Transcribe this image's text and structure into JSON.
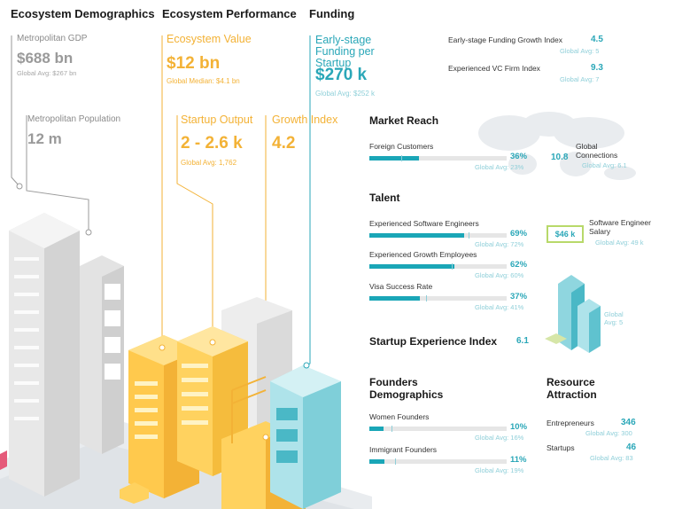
{
  "headers": {
    "demographics": "Ecosystem Demographics",
    "performance": "Ecosystem Performance",
    "funding": "Funding"
  },
  "demographics": {
    "gdp_label": "Metropolitan GDP",
    "gdp_value": "$688 bn",
    "gdp_global": "Global Avg: $267 bn",
    "pop_label": "Metropolitan Population",
    "pop_value": "12 m"
  },
  "performance": {
    "value_label": "Ecosystem Value",
    "value_value": "$12 bn",
    "value_global": "Global Median: $4.1 bn",
    "output_label": "Startup Output",
    "output_value": "2 - 2.6 k",
    "output_global": "Global Avg: 1,762",
    "growth_label": "Growth Index",
    "growth_value": "4.2"
  },
  "funding": {
    "label": "Early-stage Funding per Startup",
    "value": "$270 k",
    "global": "Global Avg: $252 k",
    "growth_label": "Early-stage Funding Growth Index",
    "growth_value": "4.5",
    "growth_global": "Global Avg: 5",
    "vc_label": "Experienced VC Firm Index",
    "vc_value": "9.3",
    "vc_global": "Global Avg: 7"
  },
  "market_reach": {
    "title": "Market Reach",
    "foreign_label": "Foreign Customers",
    "foreign_pct": "36%",
    "foreign_fill": 36,
    "foreign_avg_pos": 23,
    "foreign_global": "Global Avg: 23%",
    "connections_value": "10.8",
    "connections_label": "Global Connections",
    "connections_global": "Global Avg: 6.1"
  },
  "talent": {
    "title": "Talent",
    "items": [
      {
        "label": "Experienced Software Engineers",
        "pct": "69%",
        "fill": 69,
        "avg": 72,
        "global": "Global Avg: 72%"
      },
      {
        "label": "Experienced Growth Employees",
        "pct": "62%",
        "fill": 62,
        "avg": 60,
        "global": "Global Avg: 60%"
      },
      {
        "label": "Visa Success Rate",
        "pct": "37%",
        "fill": 37,
        "avg": 41,
        "global": "Global Avg: 41%"
      }
    ],
    "salary_value": "$46 k",
    "salary_label": "Software Engineer Salary",
    "salary_global": "Global Avg: 49 k",
    "building_global": "Global Avg: 5"
  },
  "experience": {
    "title": "Startup Experience Index",
    "value": "6.1"
  },
  "founders": {
    "title": "Founders Demographics",
    "items": [
      {
        "label": "Women Founders",
        "pct": "10%",
        "fill": 10,
        "avg": 16,
        "global": "Global Avg: 16%"
      },
      {
        "label": "Immigrant Founders",
        "pct": "11%",
        "fill": 11,
        "avg": 19,
        "global": "Global Avg: 19%"
      }
    ]
  },
  "resource": {
    "title": "Resource Attraction",
    "entre_label": "Entrepreneurs",
    "entre_value": "346",
    "entre_global": "Global Avg: 300",
    "startups_label": "Startups",
    "startups_value": "46",
    "startups_global": "Global Avg: 83"
  },
  "colors": {
    "teal": "#1aa6b7",
    "yellow": "#f3b236",
    "gray": "#9a9a9a"
  }
}
